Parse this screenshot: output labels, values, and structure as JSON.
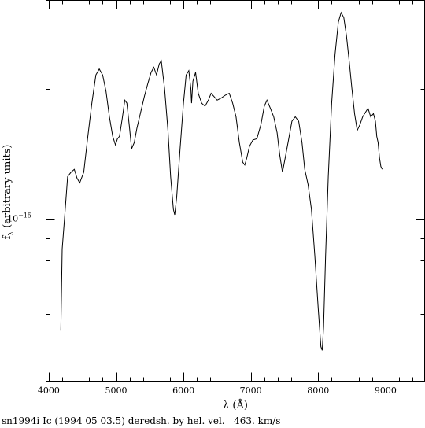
{
  "caption": "sn1994i Ic (1994 05 03.5) deredsh. by hel. vel.   463. km/s",
  "chart_data": {
    "type": "line",
    "xlabel": "λ (Å)",
    "ylabel_main": "f",
    "ylabel_sub": "λ",
    "ylabel_rest": " (arbitrary units)",
    "xlim": [
      3960,
      9580
    ],
    "ylim": [
      4.2e-16,
      3.2e-15
    ],
    "yscale": "log",
    "xticks": [
      {
        "value": 4000,
        "label": "4000"
      },
      {
        "value": 5000,
        "label": "5000"
      },
      {
        "value": 6000,
        "label": "6000"
      },
      {
        "value": 7000,
        "label": "7000"
      },
      {
        "value": 8000,
        "label": "8000"
      },
      {
        "value": 9000,
        "label": "9000"
      }
    ],
    "yticks": [
      {
        "value": 1e-15,
        "label_base": "10",
        "label_exp": "−15"
      }
    ],
    "series": [
      {
        "values": [
          [
            4180,
            5.5e-16
          ],
          [
            4200,
            8.5e-16
          ],
          [
            4240,
            1.03e-15
          ],
          [
            4280,
            1.25e-15
          ],
          [
            4330,
            1.28e-15
          ],
          [
            4380,
            1.3e-15
          ],
          [
            4420,
            1.24e-15
          ],
          [
            4460,
            1.21e-15
          ],
          [
            4520,
            1.28e-15
          ],
          [
            4580,
            1.55e-15
          ],
          [
            4640,
            1.85e-15
          ],
          [
            4700,
            2.15e-15
          ],
          [
            4750,
            2.22e-15
          ],
          [
            4800,
            2.15e-15
          ],
          [
            4850,
            1.97e-15
          ],
          [
            4900,
            1.72e-15
          ],
          [
            4950,
            1.55e-15
          ],
          [
            4990,
            1.48e-15
          ],
          [
            5020,
            1.53e-15
          ],
          [
            5050,
            1.55e-15
          ],
          [
            5090,
            1.7e-15
          ],
          [
            5130,
            1.88e-15
          ],
          [
            5160,
            1.85e-15
          ],
          [
            5200,
            1.62e-15
          ],
          [
            5230,
            1.45e-15
          ],
          [
            5270,
            1.5e-15
          ],
          [
            5310,
            1.62e-15
          ],
          [
            5360,
            1.75e-15
          ],
          [
            5420,
            1.92e-15
          ],
          [
            5470,
            2.05e-15
          ],
          [
            5520,
            2.18e-15
          ],
          [
            5560,
            2.24e-15
          ],
          [
            5600,
            2.15e-15
          ],
          [
            5640,
            2.28e-15
          ],
          [
            5670,
            2.32e-15
          ],
          [
            5720,
            2e-15
          ],
          [
            5770,
            1.6e-15
          ],
          [
            5810,
            1.25e-15
          ],
          [
            5850,
            1.05e-15
          ],
          [
            5870,
            1.02e-15
          ],
          [
            5900,
            1.12e-15
          ],
          [
            5950,
            1.45e-15
          ],
          [
            6000,
            1.85e-15
          ],
          [
            6040,
            2.15e-15
          ],
          [
            6080,
            2.2e-15
          ],
          [
            6110,
            2e-15
          ],
          [
            6120,
            1.85e-15
          ],
          [
            6140,
            2.08e-15
          ],
          [
            6180,
            2.18e-15
          ],
          [
            6220,
            1.95e-15
          ],
          [
            6270,
            1.85e-15
          ],
          [
            6320,
            1.82e-15
          ],
          [
            6370,
            1.88e-15
          ],
          [
            6410,
            1.95e-15
          ],
          [
            6450,
            1.92e-15
          ],
          [
            6500,
            1.88e-15
          ],
          [
            6560,
            1.9e-15
          ],
          [
            6620,
            1.93e-15
          ],
          [
            6680,
            1.95e-15
          ],
          [
            6730,
            1.85e-15
          ],
          [
            6780,
            1.72e-15
          ],
          [
            6830,
            1.5e-15
          ],
          [
            6880,
            1.35e-15
          ],
          [
            6910,
            1.33e-15
          ],
          [
            6940,
            1.38e-15
          ],
          [
            6980,
            1.47e-15
          ],
          [
            7030,
            1.52e-15
          ],
          [
            7090,
            1.53e-15
          ],
          [
            7150,
            1.65e-15
          ],
          [
            7200,
            1.82e-15
          ],
          [
            7240,
            1.88e-15
          ],
          [
            7290,
            1.8e-15
          ],
          [
            7340,
            1.72e-15
          ],
          [
            7390,
            1.58e-15
          ],
          [
            7430,
            1.4e-15
          ],
          [
            7470,
            1.28e-15
          ],
          [
            7510,
            1.38e-15
          ],
          [
            7560,
            1.52e-15
          ],
          [
            7610,
            1.68e-15
          ],
          [
            7660,
            1.72e-15
          ],
          [
            7710,
            1.68e-15
          ],
          [
            7760,
            1.5e-15
          ],
          [
            7800,
            1.3e-15
          ],
          [
            7850,
            1.2e-15
          ],
          [
            7900,
            1.05e-15
          ],
          [
            7950,
            8.2e-16
          ],
          [
            8000,
            6.2e-16
          ],
          [
            8040,
            5.05e-16
          ],
          [
            8060,
            4.95e-16
          ],
          [
            8080,
            5.6e-16
          ],
          [
            8110,
            8.2e-16
          ],
          [
            8150,
            1.25e-15
          ],
          [
            8200,
            1.85e-15
          ],
          [
            8250,
            2.4e-15
          ],
          [
            8300,
            2.85e-15
          ],
          [
            8340,
            3e-15
          ],
          [
            8380,
            2.92e-15
          ],
          [
            8420,
            2.65e-15
          ],
          [
            8460,
            2.32e-15
          ],
          [
            8500,
            2e-15
          ],
          [
            8540,
            1.75e-15
          ],
          [
            8580,
            1.6e-15
          ],
          [
            8620,
            1.65e-15
          ],
          [
            8660,
            1.72e-15
          ],
          [
            8700,
            1.76e-15
          ],
          [
            8740,
            1.8e-15
          ],
          [
            8780,
            1.72e-15
          ],
          [
            8820,
            1.75e-15
          ],
          [
            8850,
            1.68e-15
          ],
          [
            8870,
            1.55e-15
          ],
          [
            8890,
            1.5e-15
          ],
          [
            8910,
            1.38e-15
          ],
          [
            8930,
            1.32e-15
          ],
          [
            8950,
            1.3e-15
          ]
        ]
      }
    ]
  }
}
